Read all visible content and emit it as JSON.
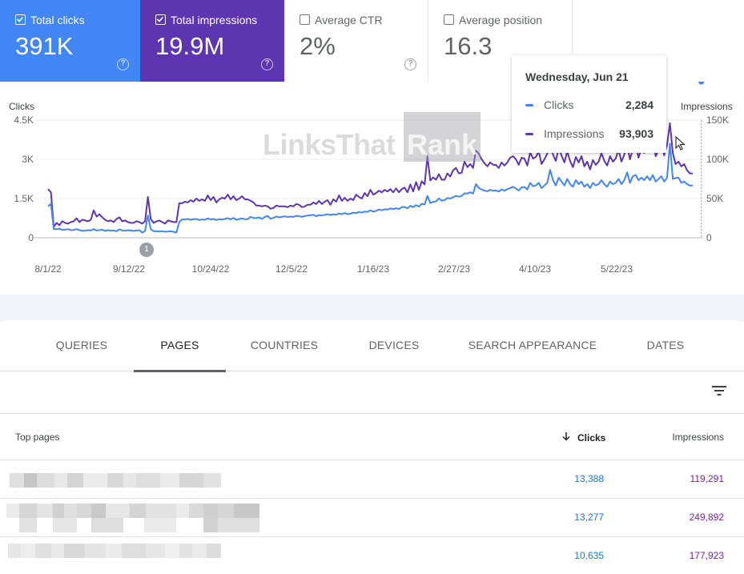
{
  "metrics": {
    "clicks": {
      "label": "Total clicks",
      "value": "391K",
      "checked": true
    },
    "impressions": {
      "label": "Total impressions",
      "value": "19.9M",
      "checked": true
    },
    "ctr": {
      "label": "Average CTR",
      "value": "2%",
      "checked": false
    },
    "position": {
      "label": "Average position",
      "value": "16.3",
      "checked": false
    }
  },
  "help_glyph": "?",
  "chart_data": {
    "type": "line",
    "x_tick_labels": [
      "8/1/22",
      "9/12/22",
      "10/24/22",
      "12/5/22",
      "1/16/23",
      "2/27/23",
      "4/10/23",
      "5/22/23"
    ],
    "y_left": {
      "title": "Clicks",
      "ticks": [
        "4.5K",
        "3K",
        "1.5K",
        "0"
      ],
      "range": [
        0,
        4500
      ]
    },
    "y_right": {
      "title": "Impressions",
      "ticks": [
        "150K",
        "100K",
        "50K",
        "0"
      ],
      "range": [
        0,
        150000
      ]
    },
    "series": [
      {
        "name": "Impressions",
        "color": "#5e35b1",
        "axis": "right",
        "values": [
          62000,
          58000,
          14000,
          19000,
          16000,
          21000,
          19000,
          18000,
          20000,
          21000,
          25000,
          20000,
          23000,
          22000,
          21000,
          23000,
          35000,
          27000,
          30000,
          26000,
          23000,
          21000,
          22000,
          20000,
          24000,
          26000,
          21000,
          22000,
          20000,
          19000,
          19000,
          21000,
          20000,
          18000,
          21000,
          52000,
          24000,
          19000,
          21000,
          22000,
          20000,
          18000,
          22000,
          21000,
          20000,
          20000,
          44000,
          44000,
          46000,
          45000,
          48000,
          46000,
          50000,
          47000,
          49000,
          47000,
          54000,
          48000,
          52000,
          45000,
          49000,
          51000,
          50000,
          55000,
          49000,
          53000,
          48000,
          50000,
          53000,
          49000,
          49000,
          47000,
          45000,
          41000,
          41000,
          40000,
          41000,
          40000,
          37000,
          38000,
          41000,
          40000,
          40000,
          40000,
          39000,
          41000,
          40000,
          43000,
          42000,
          39000,
          40000,
          42000,
          42000,
          45000,
          43000,
          47000,
          43000,
          46000,
          48000,
          42000,
          49000,
          46000,
          54000,
          47000,
          51000,
          47000,
          50000,
          48000,
          55000,
          52000,
          50000,
          57000,
          53000,
          61000,
          55000,
          57000,
          60000,
          58000,
          61000,
          59000,
          62000,
          58000,
          63000,
          58000,
          62000,
          64000,
          58000,
          68000,
          59000,
          71000,
          61000,
          72000,
          68000,
          104000,
          73000,
          77000,
          74000,
          81000,
          74000,
          74000,
          82000,
          78000,
          86000,
          89000,
          82000,
          83000,
          97000,
          90000,
          94000,
          89000,
          111000,
          107000,
          100000,
          95000,
          91000,
          96000,
          93000,
          93000,
          89000,
          96000,
          92000,
          96000,
          102000,
          104000,
          100000,
          93000,
          102000,
          101000,
          92000,
          109000,
          101000,
          103000,
          110000,
          94000,
          100000,
          107000,
          120000,
          106000,
          98000,
          114000,
          105000,
          96000,
          110000,
          98000,
          90000,
          103000,
          96000,
          104000,
          91000,
          97000,
          87000,
          99000,
          93000,
          97000,
          108000,
          98000,
          92000,
          104000,
          97000,
          101000,
          112000,
          97000,
          106000,
          118000,
          100000,
          113000,
          118000,
          102000,
          114000,
          108000,
          119000,
          110000,
          123000,
          104000,
          112000,
          120000,
          105000,
          118000,
          146000,
          108000,
          93903,
          97000,
          91000,
          94000,
          86000,
          82000,
          82000
        ]
      },
      {
        "name": "Clicks",
        "color": "#4285f4",
        "axis": "left",
        "values": [
          1200,
          1300,
          340,
          330,
          350,
          300,
          310,
          330,
          290,
          300,
          330,
          290,
          270,
          270,
          290,
          280,
          330,
          280,
          290,
          310,
          260,
          290,
          270,
          280,
          250,
          320,
          280,
          270,
          290,
          280,
          260,
          280,
          290,
          200,
          260,
          850,
          330,
          250,
          250,
          240,
          250,
          230,
          240,
          250,
          230,
          200,
          600,
          700,
          700,
          720,
          690,
          710,
          720,
          680,
          700,
          690,
          740,
          700,
          720,
          680,
          710,
          700,
          720,
          750,
          700,
          760,
          690,
          720,
          740,
          710,
          710,
          800,
          760,
          750,
          780,
          720,
          800,
          830,
          730,
          760,
          810,
          780,
          800,
          820,
          790,
          810,
          800,
          840,
          830,
          800,
          830,
          850,
          860,
          880,
          820,
          870,
          850,
          880,
          900,
          870,
          900,
          880,
          930,
          900,
          950,
          900,
          920,
          960,
          940,
          990,
          960,
          1000,
          990,
          1050,
          1000,
          1030,
          1080,
          1050,
          1090,
          1080,
          1120,
          1100,
          1130,
          1100,
          1170,
          1180,
          1130,
          1220,
          1170,
          1250,
          1190,
          1300,
          1270,
          1600,
          1330,
          1370,
          1390,
          1500,
          1420,
          1440,
          1520,
          1500,
          1550,
          1600,
          1570,
          1600,
          1700,
          1690,
          1740,
          1690,
          2050,
          1900,
          1850,
          1800,
          1780,
          1830,
          1800,
          1810,
          1770,
          1850,
          1800,
          1860,
          1900,
          1950,
          1880,
          1810,
          1930,
          1940,
          1850,
          2100,
          1970,
          2000,
          2100,
          1900,
          2000,
          2100,
          2600,
          2200,
          2000,
          2300,
          2150,
          2000,
          2250,
          2050,
          1950,
          2200,
          2050,
          2150,
          1950,
          2050,
          1900,
          2100,
          2000,
          2050,
          2200,
          2050,
          1950,
          2150,
          2050,
          2100,
          2250,
          2050,
          2200,
          2500,
          2100,
          2350,
          2400,
          2200,
          2300,
          2200,
          2350,
          2200,
          2400,
          2150,
          2250,
          2350,
          2150,
          2300,
          3600,
          2250,
          2284,
          2300,
          2100,
          2150,
          2050,
          2000,
          2000
        ]
      }
    ],
    "hover_index": 229
  },
  "watermark": {
    "part1": "LinksThat",
    "part2": "Rank"
  },
  "annotation_badge": "1",
  "tooltip": {
    "date": "Wednesday, Jun 21",
    "rows": [
      {
        "name": "Clicks",
        "value": "2,284",
        "color": "#4285f4"
      },
      {
        "name": "Impressions",
        "value": "93,903",
        "color": "#5e35b1"
      }
    ]
  },
  "tabs": [
    "QUERIES",
    "PAGES",
    "COUNTRIES",
    "DEVICES",
    "SEARCH APPEARANCE",
    "DATES"
  ],
  "active_tab": "PAGES",
  "table": {
    "headers": {
      "pages": "Top pages",
      "clicks": "Clicks",
      "impressions": "Impressions"
    },
    "rows": [
      {
        "clicks": "13,388",
        "impressions": "119,291"
      },
      {
        "clicks": "13,277",
        "impressions": "249,892"
      },
      {
        "clicks": "10,635",
        "impressions": "177,923"
      }
    ]
  }
}
